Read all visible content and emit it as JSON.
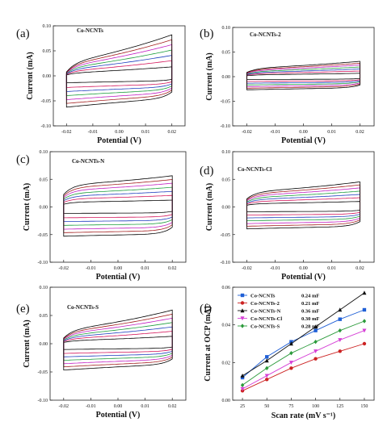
{
  "panels": [
    {
      "label": "(a)",
      "title": "Co-NCNTs",
      "type": "line",
      "xlabel": "Potential (V)",
      "ylabel": "Current (mA)",
      "xlim": [
        -0.025,
        0.025
      ],
      "ylim": [
        -0.1,
        0.1
      ],
      "xticks": [
        "-0.02",
        "-0.01",
        "0.00",
        "0.01",
        "0.02"
      ],
      "yticks": [
        "0.10",
        "0.05",
        "0.00",
        "-0.05",
        "-0.10"
      ],
      "cv": {
        "scale": 0.058,
        "skew": 0.45,
        "tilt": 0.4
      },
      "series": [
        {
          "color": "#000000",
          "amp": 0.22
        },
        {
          "color": "#d4145a",
          "amp": 0.37
        },
        {
          "color": "#1f3fbf",
          "amp": 0.5
        },
        {
          "color": "#1e9e3e",
          "amp": 0.63
        },
        {
          "color": "#c21fc2",
          "amp": 0.76
        },
        {
          "color": "#a31e1e",
          "amp": 0.88
        },
        {
          "color": "#000000",
          "amp": 1.0
        }
      ]
    },
    {
      "label": "(b)",
      "title": "Co-NCNTs-2",
      "type": "line",
      "xlabel": "Potential (V)",
      "ylabel": "Current (mA)",
      "xlim": [
        -0.025,
        0.025
      ],
      "ylim": [
        -0.1,
        0.1
      ],
      "xticks": [
        "-0.02",
        "-0.01",
        "0.00",
        "0.01",
        "0.02"
      ],
      "yticks": [
        "0.10",
        "0.05",
        "0.00",
        "-0.05",
        "-0.10"
      ],
      "cv": {
        "scale": 0.027,
        "skew": 0.3,
        "tilt": 0.2
      },
      "series": [
        {
          "color": "#000000",
          "amp": 0.22
        },
        {
          "color": "#d4145a",
          "amp": 0.37
        },
        {
          "color": "#1f3fbf",
          "amp": 0.5
        },
        {
          "color": "#1e9e3e",
          "amp": 0.63
        },
        {
          "color": "#c21fc2",
          "amp": 0.76
        },
        {
          "color": "#a31e1e",
          "amp": 0.88
        },
        {
          "color": "#000000",
          "amp": 1.0
        }
      ]
    },
    {
      "label": "(c)",
      "title": "Co-NCNTs-N",
      "type": "line",
      "xlabel": "Potential (V)",
      "ylabel": "Current (mA)",
      "xlim": [
        -0.025,
        0.025
      ],
      "ylim": [
        -0.1,
        0.1
      ],
      "xticks": [
        "-0.02",
        "-0.01",
        "0.00",
        "0.01",
        "0.02"
      ],
      "yticks": [
        "0.10",
        "0.05",
        "0.00",
        "-0.05",
        "-0.10"
      ],
      "cv": {
        "scale": 0.056,
        "skew": 0.2,
        "tilt": 0.1
      },
      "series": [
        {
          "color": "#000000",
          "amp": 0.22
        },
        {
          "color": "#d4145a",
          "amp": 0.37
        },
        {
          "color": "#1f3fbf",
          "amp": 0.5
        },
        {
          "color": "#1e9e3e",
          "amp": 0.63
        },
        {
          "color": "#c21fc2",
          "amp": 0.76
        },
        {
          "color": "#a31e1e",
          "amp": 0.88
        },
        {
          "color": "#000000",
          "amp": 1.0
        }
      ]
    },
    {
      "label": "(d)",
      "title": "Co-NCNTs-Cl",
      "type": "line",
      "xlabel": "Potential (V)",
      "ylabel": "Current (mA)",
      "xlim": [
        -0.025,
        0.025
      ],
      "ylim": [
        -0.1,
        0.1
      ],
      "xticks": [
        "-0.02",
        "-0.01",
        "0.00",
        "0.01",
        "0.02"
      ],
      "yticks": [
        "0.10",
        "0.05",
        "0.00",
        "-0.05",
        "-0.10"
      ],
      "cv": {
        "scale": 0.041,
        "skew": 0.3,
        "tilt": 0.15
      },
      "series": [
        {
          "color": "#000000",
          "amp": 0.22
        },
        {
          "color": "#d4145a",
          "amp": 0.37
        },
        {
          "color": "#1f3fbf",
          "amp": 0.5
        },
        {
          "color": "#1e9e3e",
          "amp": 0.63
        },
        {
          "color": "#c21fc2",
          "amp": 0.76
        },
        {
          "color": "#a31e1e",
          "amp": 0.88
        },
        {
          "color": "#000000",
          "amp": 1.0
        }
      ]
    },
    {
      "label": "(e)",
      "title": "Co-NCNTs-S",
      "type": "line",
      "xlabel": "Potential (V)",
      "ylabel": "Current (mA)",
      "xlim": [
        -0.025,
        0.025
      ],
      "ylim": [
        -0.1,
        0.1
      ],
      "xticks": [
        "-0.02",
        "-0.01",
        "0.00",
        "0.01",
        "0.02"
      ],
      "yticks": [
        "0.10",
        "0.05",
        "0.00",
        "-0.05",
        "-0.10"
      ],
      "cv": {
        "scale": 0.045,
        "skew": 0.45,
        "tilt": 0.3
      },
      "series": [
        {
          "color": "#000000",
          "amp": 0.22
        },
        {
          "color": "#d4145a",
          "amp": 0.37
        },
        {
          "color": "#1f3fbf",
          "amp": 0.5
        },
        {
          "color": "#1e9e3e",
          "amp": 0.63
        },
        {
          "color": "#c21fc2",
          "amp": 0.76
        },
        {
          "color": "#a31e1e",
          "amp": 0.88
        },
        {
          "color": "#000000",
          "amp": 1.0
        }
      ]
    }
  ],
  "chart_data": {
    "label": "(f)",
    "type": "line",
    "xlabel": "Scan rate (mV s⁻¹)",
    "ylabel": "Current at OCP (mA)",
    "xlim": [
      15,
      160
    ],
    "ylim": [
      0,
      0.06
    ],
    "x": [
      25,
      50,
      75,
      100,
      125,
      150
    ],
    "xticks": [
      "25",
      "50",
      "75",
      "100",
      "125",
      "150"
    ],
    "yticks": [
      "0.06",
      "0.04",
      "0.02",
      "0.00"
    ],
    "legend_position": "top-left",
    "series": [
      {
        "name": "Co-NCNTs",
        "capacitance": "0.24 mF",
        "color": "#1f5fd6",
        "marker": "square",
        "values": [
          0.012,
          0.023,
          0.031,
          0.037,
          0.043,
          0.048
        ]
      },
      {
        "name": "Co-NCNTs-2",
        "capacitance": "0.21 mF",
        "color": "#cc2222",
        "marker": "circle",
        "values": [
          0.005,
          0.011,
          0.017,
          0.022,
          0.026,
          0.03
        ]
      },
      {
        "name": "Co-NCNTs-N",
        "capacitance": "0.36 mF",
        "color": "#111111",
        "marker": "triangle",
        "values": [
          0.013,
          0.021,
          0.03,
          0.039,
          0.048,
          0.057
        ]
      },
      {
        "name": "Co-NCNTs-Cl",
        "capacitance": "0.30 mF",
        "color": "#d63fd6",
        "marker": "triangle-down",
        "values": [
          0.006,
          0.013,
          0.02,
          0.026,
          0.032,
          0.037
        ]
      },
      {
        "name": "Co-NCNTs-S",
        "capacitance": "0.28 mF",
        "color": "#2a9a3a",
        "marker": "diamond",
        "values": [
          0.008,
          0.017,
          0.025,
          0.031,
          0.037,
          0.042
        ]
      }
    ]
  }
}
